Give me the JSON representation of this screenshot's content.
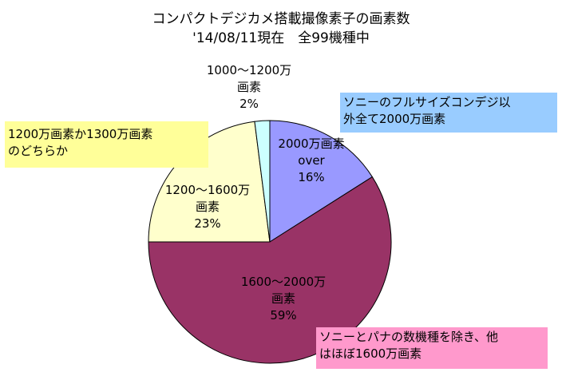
{
  "chart_data": {
    "type": "pie",
    "title_line1": "コンパクトデジカメ搭載撮像素子の画素数",
    "title_line2": "'14/08/11現在　全99機種中",
    "slices": [
      {
        "name": "2000万画素 over",
        "label_lines": [
          "2000万画素",
          "over",
          "16%"
        ],
        "value": 16,
        "color": "#9999ff"
      },
      {
        "name": "1600〜2000万 画素",
        "label_lines": [
          "1600〜2000万",
          "画素",
          "59%"
        ],
        "value": 59,
        "color": "#993366"
      },
      {
        "name": "1200〜1600万 画素",
        "label_lines": [
          "1200〜1600万",
          "画素",
          "23%"
        ],
        "value": 23,
        "color": "#ffffcc"
      },
      {
        "name": "1000〜1200万 画素",
        "label_lines": [
          "1000〜1200万",
          "画素",
          "2%"
        ],
        "value": 2,
        "color": "#ccffff"
      }
    ],
    "start_angle": "12 o'clock",
    "direction": "clockwise"
  },
  "notes": [
    {
      "line1": "ソニーのフルサイズコンデジ以",
      "line2": "外全て2000万画素",
      "bg": "#99ccff"
    },
    {
      "line1": "1200万画素か1300万画素",
      "line2": "のどちらか",
      "bg": "#ffff99"
    },
    {
      "line1": "ソニーとパナの数機種を除き、他",
      "line2": "はほぼ1600万画素",
      "bg": "#ff99cc"
    }
  ]
}
